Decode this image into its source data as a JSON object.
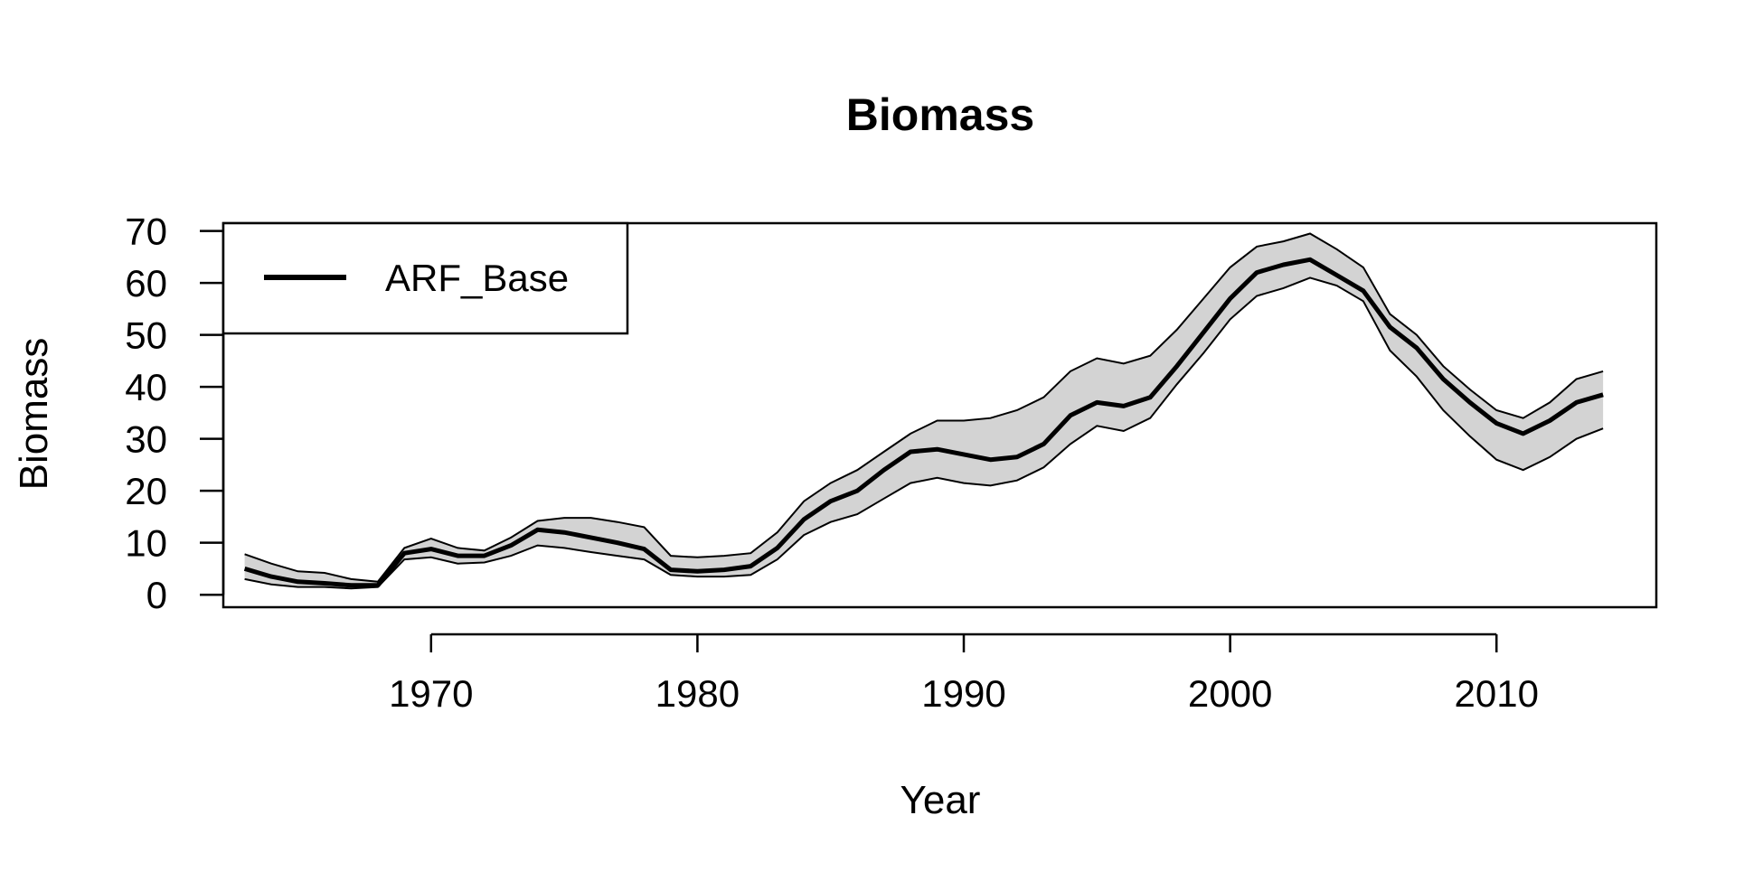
{
  "chart_data": {
    "type": "line",
    "title": "Biomass",
    "xlabel": "Year",
    "ylabel": "Biomass",
    "xlim": [
      1962.2,
      2016
    ],
    "ylim": [
      -2.4,
      71.5
    ],
    "x_ticks": [
      1970,
      1980,
      1990,
      2000,
      2010
    ],
    "y_ticks": [
      0,
      10,
      20,
      30,
      40,
      50,
      60,
      70
    ],
    "grid": false,
    "legend_position": "top-left",
    "band_color": "#d3d3d3",
    "line_color": "#000000",
    "series": [
      {
        "name": "ARF_Base",
        "x": [
          1963,
          1964,
          1965,
          1966,
          1967,
          1968,
          1969,
          1970,
          1971,
          1972,
          1973,
          1974,
          1975,
          1976,
          1977,
          1978,
          1979,
          1980,
          1981,
          1982,
          1983,
          1984,
          1985,
          1986,
          1987,
          1988,
          1989,
          1990,
          1991,
          1992,
          1993,
          1994,
          1995,
          1996,
          1997,
          1998,
          1999,
          2000,
          2001,
          2002,
          2003,
          2004,
          2005,
          2006,
          2007,
          2008,
          2009,
          2010,
          2011,
          2012,
          2013,
          2014
        ],
        "values": [
          5,
          3.5,
          2.5,
          2.2,
          1.8,
          1.8,
          8,
          8.8,
          7.5,
          7.5,
          9.5,
          12.5,
          12,
          11,
          10,
          8.8,
          4.8,
          4.5,
          4.8,
          5.5,
          9,
          14.5,
          18,
          20,
          24,
          27.5,
          28,
          27,
          26,
          26.5,
          29,
          34.5,
          37,
          36.3,
          38,
          44,
          50.5,
          57,
          62,
          63.5,
          64.5,
          61.5,
          58.5,
          51.5,
          47.5,
          41.5,
          37,
          33,
          31,
          33.5,
          37,
          38.5
        ],
        "lower": [
          3,
          2,
          1.5,
          1.5,
          1.2,
          1.5,
          6.8,
          7.2,
          6,
          6.2,
          7.5,
          9.5,
          9,
          8.2,
          7.5,
          6.8,
          3.8,
          3.5,
          3.5,
          3.8,
          6.8,
          11.5,
          14,
          15.5,
          18.5,
          21.5,
          22.5,
          21.5,
          21,
          22,
          24.5,
          29,
          32.5,
          31.5,
          34,
          40.5,
          46.5,
          53,
          57.5,
          59,
          61,
          59.5,
          56.5,
          47,
          42,
          35.5,
          30.5,
          26,
          24,
          26.5,
          30,
          32
        ],
        "upper": [
          7.8,
          6,
          4.5,
          4.2,
          3,
          2.5,
          9,
          10.8,
          9,
          8.5,
          11,
          14.2,
          14.8,
          14.8,
          14,
          13,
          7.5,
          7.2,
          7.5,
          8,
          12,
          18,
          21.5,
          24,
          27.5,
          31,
          33.5,
          33.5,
          34,
          35.5,
          38,
          43,
          45.5,
          44.5,
          46,
          51,
          57,
          63,
          67,
          68,
          69.5,
          66.5,
          63,
          54,
          50,
          44,
          39.5,
          35.5,
          34,
          37,
          41.5,
          43
        ]
      }
    ]
  }
}
